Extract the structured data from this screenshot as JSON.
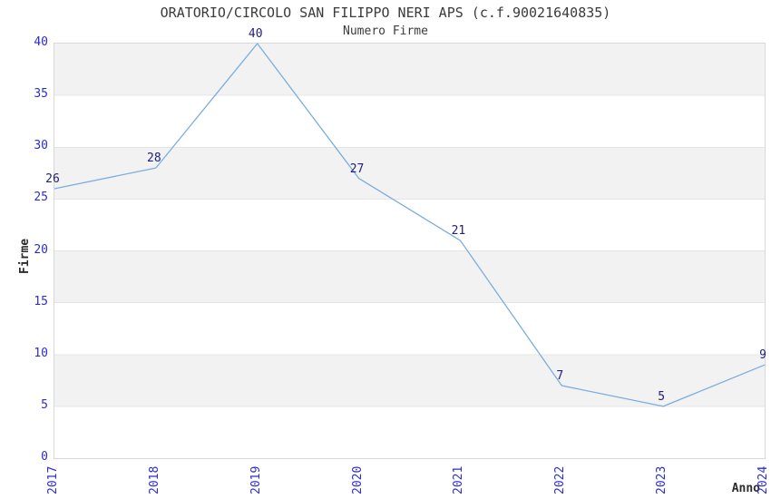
{
  "chart_data": {
    "type": "line",
    "title": "ORATORIO/CIRCOLO SAN FILIPPO NERI APS (c.f.90021640835)",
    "subtitle": "Numero Firme",
    "xlabel": "Anno",
    "ylabel": "Firme",
    "categories": [
      "2017",
      "2018",
      "2019",
      "2020",
      "2021",
      "2022",
      "2023",
      "2024"
    ],
    "values": [
      26,
      28,
      40,
      27,
      21,
      7,
      5,
      9
    ],
    "point_labels": [
      "26",
      "28",
      "40",
      "27",
      "21",
      "7",
      "5",
      "9"
    ],
    "ylim": [
      0,
      40
    ],
    "ytick_step": 5,
    "yticks": [
      "0",
      "5",
      "10",
      "15",
      "20",
      "25",
      "30",
      "35",
      "40"
    ],
    "grid": "alternating-horizontal-bands",
    "legend": "none",
    "colors": {
      "line": "#7cadde",
      "tick_label": "#2d2dcc",
      "point_label": "#20207a",
      "band_fill": "#f2f2f2",
      "gridline": "#e5e5e5",
      "plot_border": "#d8d8d8",
      "title_text": "#3b3b3b",
      "axis_title_text": "#2b2b2b"
    }
  }
}
